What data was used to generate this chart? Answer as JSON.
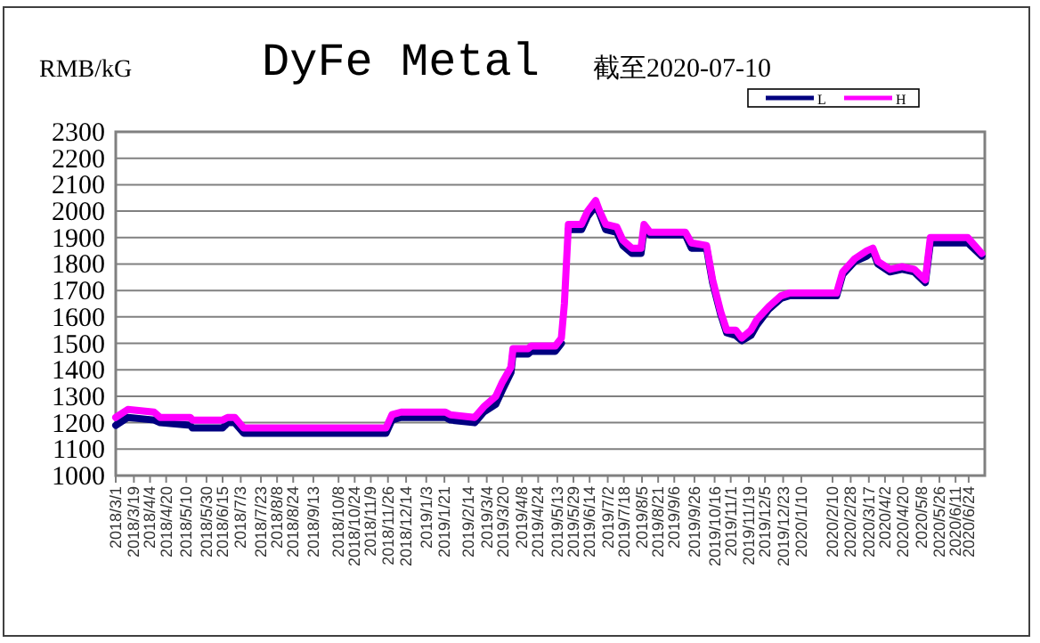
{
  "chart_data": {
    "type": "line",
    "title": "DyFe Metal",
    "subtitle": "截至2020-07-10",
    "ylabel": "RMB/kG",
    "x": [
      "2018-03-01",
      "2018-03-13",
      "2018-04-08",
      "2018-04-14",
      "2018-05-14",
      "2018-05-16",
      "2018-06-15",
      "2018-06-20",
      "2018-06-27",
      "2018-07-06",
      "2018-08-10",
      "2018-09-02",
      "2018-11-24",
      "2018-11-30",
      "2018-12-09",
      "2019-01-22",
      "2019-01-27",
      "2019-02-20",
      "2019-03-01",
      "2019-03-13",
      "2019-03-19",
      "2019-03-28",
      "2019-03-30",
      "2019-04-14",
      "2019-04-17",
      "2019-05-11",
      "2019-05-17",
      "2019-05-20",
      "2019-05-24",
      "2019-06-06",
      "2019-06-12",
      "2019-06-20",
      "2019-06-24",
      "2019-06-30",
      "2019-07-11",
      "2019-07-17",
      "2019-07-26",
      "2019-08-04",
      "2019-08-07",
      "2019-08-13",
      "2019-09-17",
      "2019-09-23",
      "2019-10-08",
      "2019-10-14",
      "2019-10-22",
      "2019-10-28",
      "2019-11-06",
      "2019-11-12",
      "2019-11-21",
      "2019-11-27",
      "2019-12-09",
      "2019-12-21",
      "2019-12-29",
      "2020-02-14",
      "2020-02-20",
      "2020-03-03",
      "2020-03-15",
      "2020-03-21",
      "2020-03-26",
      "2020-04-07",
      "2020-04-19",
      "2020-05-01",
      "2020-05-12",
      "2020-05-17",
      "2020-06-23",
      "2020-07-07"
    ],
    "series": [
      {
        "name": "L",
        "color": "#000080",
        "values": [
          1190,
          1220,
          1210,
          1200,
          1190,
          1180,
          1180,
          1200,
          1200,
          1160,
          1160,
          1160,
          1160,
          1210,
          1220,
          1220,
          1210,
          1200,
          1240,
          1270,
          1320,
          1390,
          1460,
          1460,
          1470,
          1470,
          1500,
          null,
          1930,
          1930,
          1980,
          2020,
          1990,
          1930,
          1920,
          1870,
          1840,
          1840,
          1930,
          1910,
          1910,
          1860,
          1860,
          1730,
          1610,
          1540,
          1530,
          1510,
          1530,
          1570,
          1630,
          1670,
          1680,
          1680,
          1760,
          1810,
          1830,
          1850,
          1800,
          1770,
          1780,
          1770,
          1730,
          1880,
          1880,
          1830
        ]
      },
      {
        "name": "H",
        "color": "#ff00ff",
        "values": [
          1220,
          1250,
          1240,
          1220,
          1220,
          1210,
          1210,
          1220,
          1220,
          1180,
          1180,
          1180,
          1180,
          1230,
          1240,
          1240,
          1230,
          1220,
          1260,
          1300,
          1350,
          1410,
          1480,
          1480,
          1490,
          1490,
          1520,
          1650,
          1950,
          1950,
          2000,
          2040,
          2000,
          1950,
          1940,
          1890,
          1860,
          1860,
          1950,
          1920,
          1920,
          1880,
          1870,
          1740,
          1620,
          1550,
          1550,
          1520,
          1550,
          1590,
          1640,
          1680,
          1690,
          1690,
          1770,
          1820,
          1850,
          1860,
          1810,
          1780,
          1790,
          1780,
          1740,
          1900,
          1900,
          1840
        ]
      }
    ],
    "xlim": [
      "2018-03-01",
      "2020-07-10"
    ],
    "xticks": [
      {
        "value": "2018-03-01",
        "label": "2018/3/1"
      },
      {
        "value": "2018-03-19",
        "label": "2018/3/19"
      },
      {
        "value": "2018-04-04",
        "label": "2018/4/4"
      },
      {
        "value": "2018-04-20",
        "label": "2018/4/20"
      },
      {
        "value": "2018-05-10",
        "label": "2018/5/10"
      },
      {
        "value": "2018-05-30",
        "label": "2018/5/30"
      },
      {
        "value": "2018-06-15",
        "label": "2018/6/15"
      },
      {
        "value": "2018-07-03",
        "label": "2018/7/3"
      },
      {
        "value": "2018-07-23",
        "label": "2018/7/23"
      },
      {
        "value": "2018-08-08",
        "label": "2018/8/8"
      },
      {
        "value": "2018-08-24",
        "label": "2018/8/24"
      },
      {
        "value": "2018-09-13",
        "label": "2018/9/13"
      },
      {
        "value": "2018-10-08",
        "label": "2018/10/8"
      },
      {
        "value": "2018-10-24",
        "label": "2018/10/24"
      },
      {
        "value": "2018-11-09",
        "label": "2018/11/9"
      },
      {
        "value": "2018-11-26",
        "label": "2018/11/26"
      },
      {
        "value": "2018-12-14",
        "label": "2018/12/14"
      },
      {
        "value": "2019-01-03",
        "label": "2019/1/3"
      },
      {
        "value": "2019-01-21",
        "label": "2019/1/21"
      },
      {
        "value": "2019-02-14",
        "label": "2019/2/14"
      },
      {
        "value": "2019-03-04",
        "label": "2019/3/4"
      },
      {
        "value": "2019-03-20",
        "label": "2019/3/20"
      },
      {
        "value": "2019-04-08",
        "label": "2019/4/8"
      },
      {
        "value": "2019-04-24",
        "label": "2019/4/24"
      },
      {
        "value": "2019-05-13",
        "label": "2019/5/13"
      },
      {
        "value": "2019-05-29",
        "label": "2019/5/29"
      },
      {
        "value": "2019-06-14",
        "label": "2019/6/14"
      },
      {
        "value": "2019-07-02",
        "label": "2019/7/2"
      },
      {
        "value": "2019-07-18",
        "label": "2019/7/18"
      },
      {
        "value": "2019-08-05",
        "label": "2019/8/5"
      },
      {
        "value": "2019-08-21",
        "label": "2019/8/21"
      },
      {
        "value": "2019-09-06",
        "label": "2019/9/6"
      },
      {
        "value": "2019-09-26",
        "label": "2019/9/26"
      },
      {
        "value": "2019-10-16",
        "label": "2019/10/16"
      },
      {
        "value": "2019-11-01",
        "label": "2019/11/1"
      },
      {
        "value": "2019-11-19",
        "label": "2019/11/19"
      },
      {
        "value": "2019-12-05",
        "label": "2019/12/5"
      },
      {
        "value": "2019-12-23",
        "label": "2019/12/23"
      },
      {
        "value": "2020-01-10",
        "label": "2020/1/10"
      },
      {
        "value": "2020-02-10",
        "label": "2020/2/10"
      },
      {
        "value": "2020-02-28",
        "label": "2020/2/28"
      },
      {
        "value": "2020-03-17",
        "label": "2020/3/17"
      },
      {
        "value": "2020-04-02",
        "label": "2020/4/2"
      },
      {
        "value": "2020-04-20",
        "label": "2020/4/20"
      },
      {
        "value": "2020-05-08",
        "label": "2020/5/8"
      },
      {
        "value": "2020-05-26",
        "label": "2020/5/26"
      },
      {
        "value": "2020-06-11",
        "label": "2020/6/11"
      },
      {
        "value": "2020-06-24",
        "label": "2020/6/24"
      }
    ],
    "ylim": [
      1000,
      2300
    ],
    "yticks": [
      1000,
      1100,
      1200,
      1300,
      1400,
      1500,
      1600,
      1700,
      1800,
      1900,
      2000,
      2100,
      2200,
      2300
    ],
    "grid": "y",
    "legend": "top right",
    "marker": "none",
    "line_style": "solid"
  }
}
